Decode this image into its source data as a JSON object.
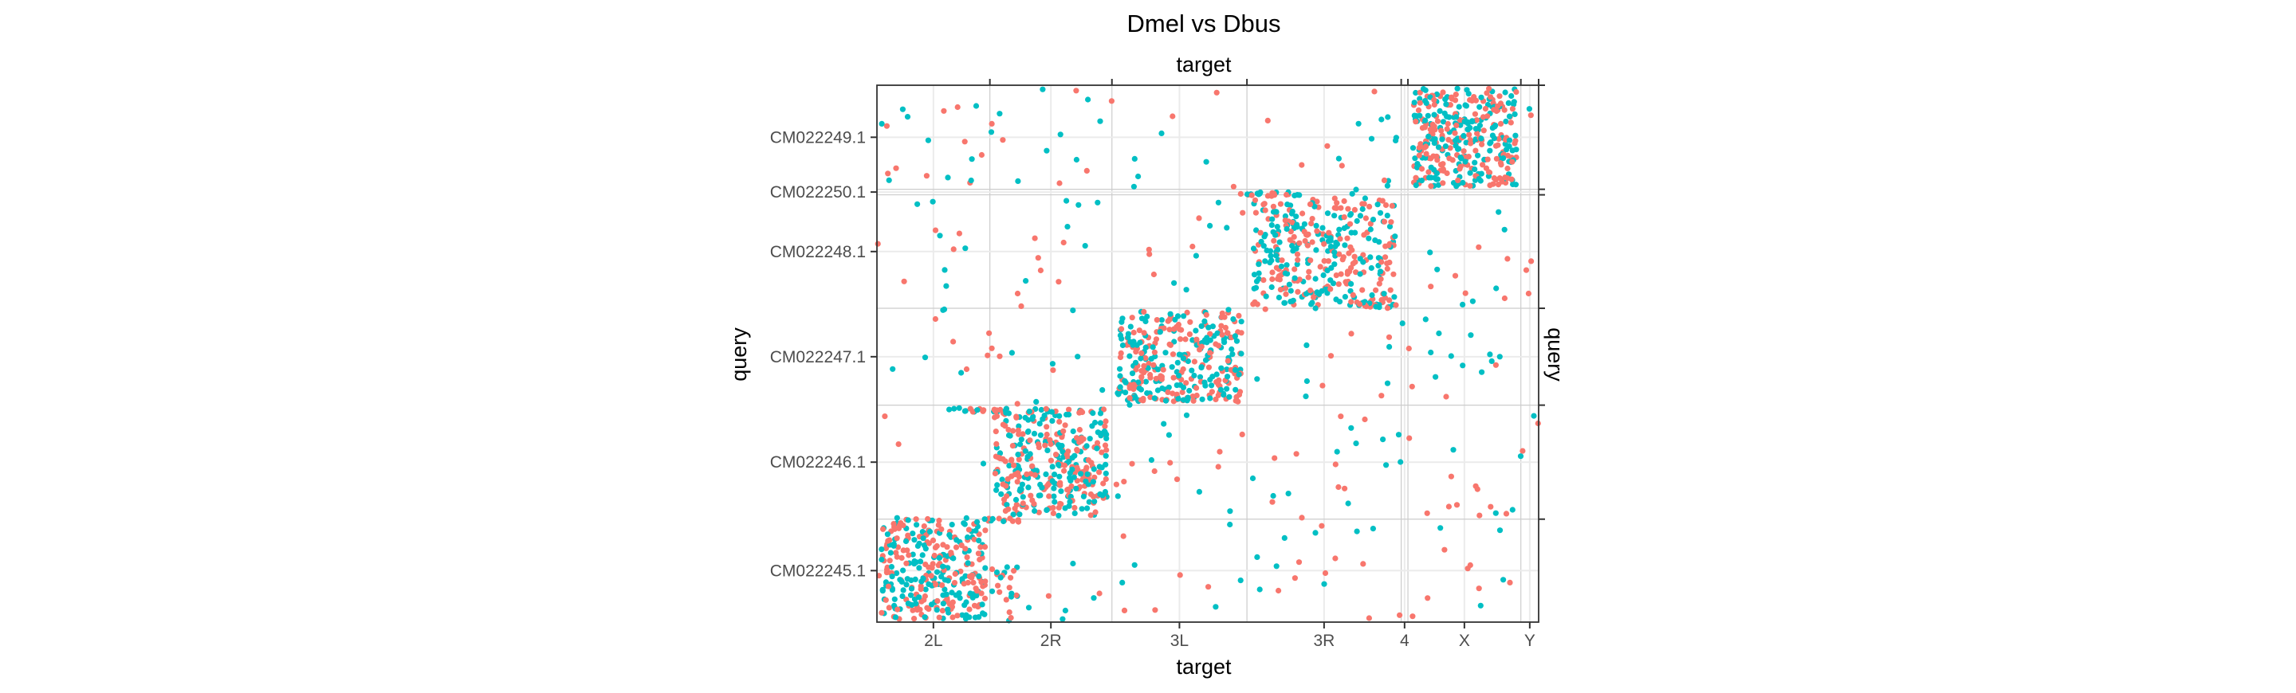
{
  "chart_data": {
    "type": "scatter",
    "title": "Dmel vs Dbus",
    "xlabel": "target",
    "ylabel": "query",
    "secondary_xlabel": "target",
    "secondary_ylabel": "query",
    "x_chromosomes": [
      {
        "label": "2L",
        "start": 0,
        "end": 23.5
      },
      {
        "label": "2R",
        "start": 23.5,
        "end": 48.9
      },
      {
        "label": "3L",
        "start": 48.9,
        "end": 77.0
      },
      {
        "label": "3R",
        "start": 77.0,
        "end": 109.1
      },
      {
        "label": "4",
        "start": 109.1,
        "end": 110.5
      },
      {
        "label": "X",
        "start": 110.5,
        "end": 134.0
      },
      {
        "label": "Y",
        "start": 134.0,
        "end": 137.7
      }
    ],
    "y_chromosomes": [
      {
        "label": "CM022245.1",
        "start": 0,
        "end": 18.6
      },
      {
        "label": "CM022246.1",
        "start": 18.6,
        "end": 39.2
      },
      {
        "label": "CM022247.1",
        "start": 39.2,
        "end": 56.7
      },
      {
        "label": "CM022248.1",
        "start": 56.7,
        "end": 77.2
      },
      {
        "label": "CM022250.1",
        "start": 77.2,
        "end": 78.2
      },
      {
        "label": "CM022249.1",
        "start": 78.2,
        "end": 97.0
      }
    ],
    "x_range": [
      0,
      137.7
    ],
    "y_range": [
      0,
      97.0
    ],
    "grid": true,
    "legend": "none",
    "series": [
      {
        "color": "#F8766D"
      },
      {
        "color": "#00BFC4"
      }
    ],
    "syntenic_blocks": [
      {
        "x_chrom": "2L",
        "y_chrom": "CM022245.1",
        "density": 300,
        "extra": "tail"
      },
      {
        "x_chrom": "2R",
        "y_chrom": "CM022246.1",
        "density": 340
      },
      {
        "x_chrom": "3L",
        "y_chrom": "CM022247.1",
        "density": 300
      },
      {
        "x_chrom": "3R",
        "y_chrom": "CM022248.1",
        "density": 320
      },
      {
        "x_chrom": "X",
        "y_chrom": "CM022249.1",
        "density": 340
      }
    ]
  }
}
